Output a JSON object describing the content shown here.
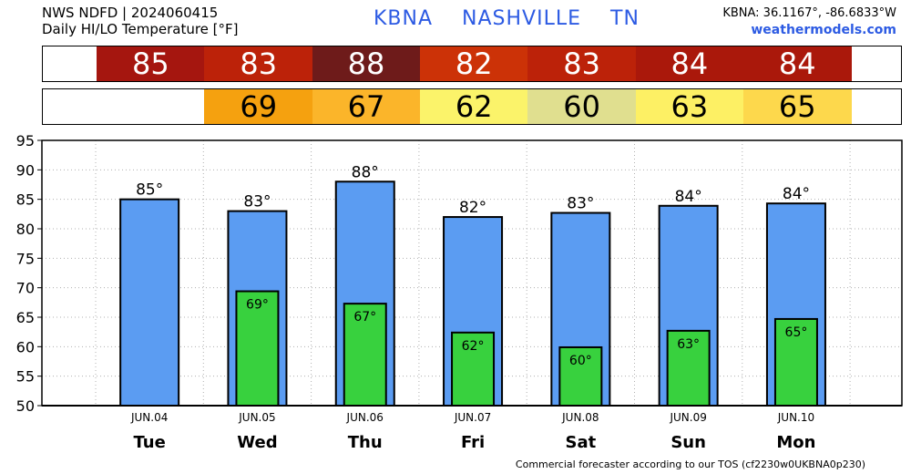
{
  "header": {
    "line1": "NWS NDFD | 2024060415",
    "line2": "Daily HI/LO Temperature [°F]",
    "station": "KBNA",
    "city": "NASHVILLE",
    "state": "TN",
    "coords": "KBNA: 36.1167°, -86.6833°W",
    "site": "weathermodels.com"
  },
  "footer": "Commercial forecaster according to our TOS (cf2230w0UKBNA0p230)",
  "colors": {
    "hi_bar": "#5b9cf2",
    "lo_bar": "#38d13e",
    "hi_cells": [
      "#a5160f",
      "#bc2209",
      "#6e1b1a",
      "#cc3207",
      "#bc2209",
      "#aa180b",
      "#aa180b"
    ],
    "lo_cells": [
      "",
      "#f5a10f",
      "#fbb52a",
      "#fbf36a",
      "#e0df8f",
      "#fdf064",
      "#fdd84c"
    ]
  },
  "strips": {
    "hi": [
      "85",
      "83",
      "88",
      "82",
      "83",
      "84",
      "84"
    ],
    "lo": [
      "",
      "69",
      "67",
      "62",
      "60",
      "63",
      "65"
    ]
  },
  "chart_data": {
    "type": "bar",
    "categories": [
      "Tue",
      "Wed",
      "Thu",
      "Fri",
      "Sat",
      "Sun",
      "Mon"
    ],
    "dates": [
      "JUN.04",
      "JUN.05",
      "JUN.06",
      "JUN.07",
      "JUN.08",
      "JUN.09",
      "JUN.10"
    ],
    "series": [
      {
        "values": [
          85,
          83,
          88,
          82,
          82.7,
          83.9,
          84.3
        ],
        "labels": [
          "85°",
          "83°",
          "88°",
          "82°",
          "83°",
          "84°",
          "84°"
        ]
      },
      {
        "values": [
          null,
          69.4,
          67.3,
          62.4,
          59.9,
          62.7,
          64.7
        ],
        "labels": [
          "",
          "69°",
          "67°",
          "62°",
          "60°",
          "63°",
          "65°"
        ]
      }
    ],
    "ylim": [
      50,
      95
    ],
    "yticks": [
      50,
      55,
      60,
      65,
      70,
      75,
      80,
      85,
      90,
      95
    ],
    "grid": true
  }
}
